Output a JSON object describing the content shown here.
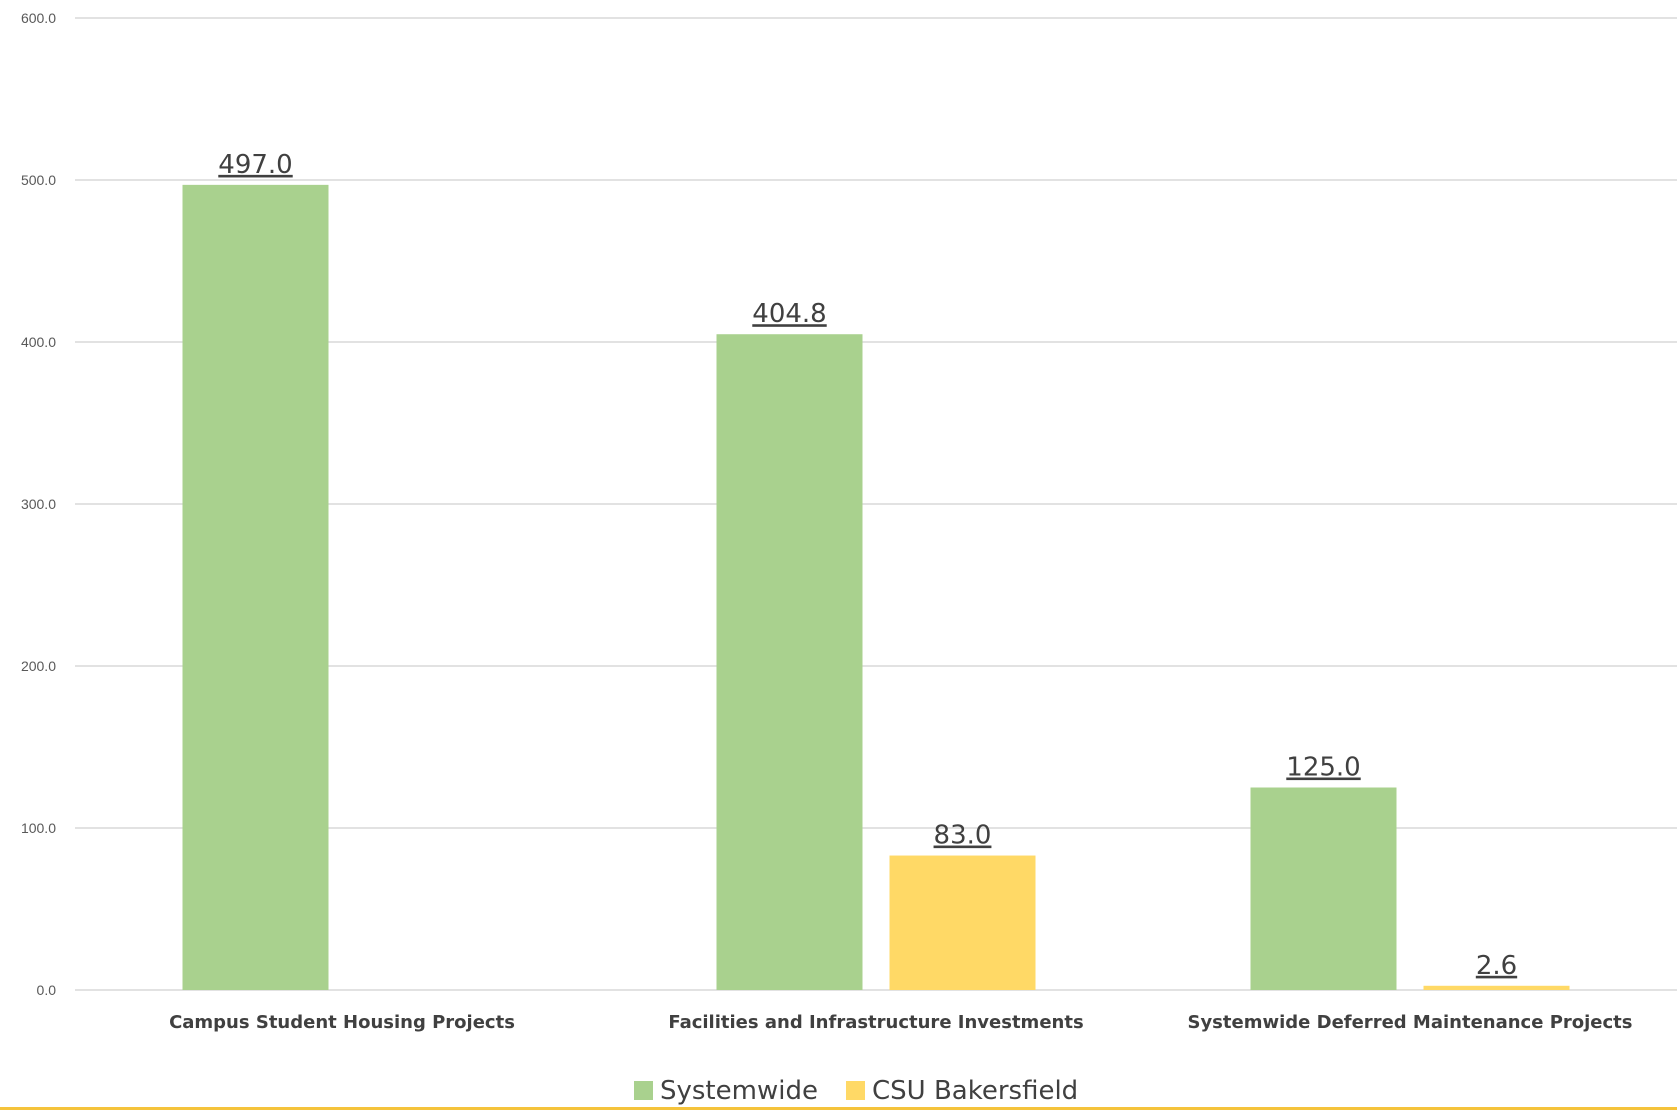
{
  "chart_data": {
    "type": "bar",
    "categories": [
      "Campus Student Housing Projects",
      "Facilities and Infrastructure Investments",
      "Systemwide Deferred Maintenance Projects"
    ],
    "series": [
      {
        "name": "Systemwide",
        "color": "#A9D18E",
        "values": [
          497.0,
          404.8,
          125.0
        ],
        "labels": [
          "497.0",
          "404.8",
          "125.0"
        ]
      },
      {
        "name": "CSU Bakersfield",
        "color": "#FFD966",
        "values": [
          null,
          83.0,
          2.6
        ],
        "labels": [
          "",
          "83.0",
          "2.6"
        ]
      }
    ],
    "y_ticks": [
      "0.0",
      "100.0",
      "200.0",
      "300.0",
      "400.0",
      "500.0",
      "600.0"
    ],
    "ylim": [
      0,
      600
    ],
    "grid": true,
    "legend_position": "bottom",
    "title": "",
    "xlabel": "",
    "ylabel": ""
  },
  "page": {
    "accent_rule_color": "#F5C33B"
  }
}
